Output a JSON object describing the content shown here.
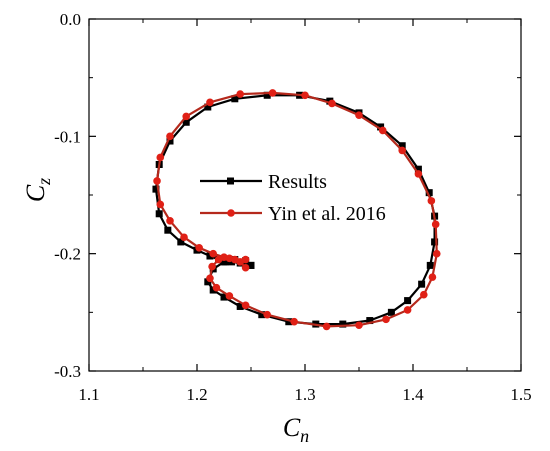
{
  "chart_data": {
    "type": "line",
    "title": "",
    "xlabel": {
      "main": "C",
      "sub": "n"
    },
    "ylabel": {
      "main": "C",
      "sub": "z"
    },
    "xlim": [
      1.1,
      1.5
    ],
    "ylim": [
      -0.3,
      0.0
    ],
    "xticks": [
      1.1,
      1.2,
      1.3,
      1.4,
      1.5
    ],
    "yticks": [
      0.0,
      -0.1,
      -0.2,
      -0.3
    ],
    "xtick_labels": [
      "1.1",
      "1.2",
      "1.3",
      "1.4",
      "1.5"
    ],
    "ytick_labels": [
      "0.0",
      "-0.1",
      "-0.2",
      "-0.3"
    ],
    "grid": false,
    "legend_position": "center",
    "series": [
      {
        "name": "Results",
        "color": "#000000",
        "marker": "square",
        "marker_color": "#000000",
        "x": [
          1.25,
          1.245,
          1.235,
          1.225,
          1.215,
          1.21,
          1.215,
          1.225,
          1.24,
          1.26,
          1.285,
          1.31,
          1.335,
          1.36,
          1.38,
          1.395,
          1.408,
          1.416,
          1.42,
          1.42,
          1.415,
          1.405,
          1.39,
          1.37,
          1.35,
          1.323,
          1.295,
          1.265,
          1.235,
          1.21,
          1.19,
          1.175,
          1.165,
          1.162,
          1.165,
          1.173,
          1.185,
          1.2,
          1.212,
          1.22,
          1.226,
          1.232,
          1.24,
          1.245,
          1.25
        ],
        "y": [
          -0.21,
          -0.206,
          -0.205,
          -0.207,
          -0.213,
          -0.224,
          -0.231,
          -0.237,
          -0.245,
          -0.252,
          -0.258,
          -0.26,
          -0.26,
          -0.257,
          -0.25,
          -0.24,
          -0.226,
          -0.21,
          -0.19,
          -0.168,
          -0.148,
          -0.128,
          -0.108,
          -0.092,
          -0.08,
          -0.07,
          -0.065,
          -0.065,
          -0.068,
          -0.075,
          -0.088,
          -0.104,
          -0.124,
          -0.145,
          -0.166,
          -0.18,
          -0.19,
          -0.197,
          -0.202,
          -0.205,
          -0.207,
          -0.207,
          -0.208,
          -0.209,
          -0.21
        ]
      },
      {
        "name": "Yin et al. 2016",
        "color": "#b5291c",
        "marker": "circle",
        "marker_color": "#e02016",
        "x": [
          1.245,
          1.24,
          1.23,
          1.22,
          1.214,
          1.212,
          1.218,
          1.23,
          1.245,
          1.265,
          1.29,
          1.32,
          1.35,
          1.375,
          1.395,
          1.41,
          1.418,
          1.422,
          1.421,
          1.417,
          1.405,
          1.39,
          1.372,
          1.35,
          1.325,
          1.3,
          1.27,
          1.24,
          1.212,
          1.19,
          1.175,
          1.166,
          1.163,
          1.166,
          1.175,
          1.188,
          1.202,
          1.215,
          1.225,
          1.235,
          1.245
        ],
        "y": [
          -0.212,
          -0.207,
          -0.204,
          -0.205,
          -0.211,
          -0.221,
          -0.229,
          -0.236,
          -0.244,
          -0.252,
          -0.258,
          -0.262,
          -0.261,
          -0.256,
          -0.248,
          -0.235,
          -0.22,
          -0.2,
          -0.175,
          -0.155,
          -0.132,
          -0.112,
          -0.095,
          -0.082,
          -0.072,
          -0.065,
          -0.063,
          -0.064,
          -0.071,
          -0.083,
          -0.1,
          -0.118,
          -0.138,
          -0.158,
          -0.172,
          -0.186,
          -0.195,
          -0.2,
          -0.203,
          -0.205,
          -0.205
        ]
      }
    ]
  }
}
